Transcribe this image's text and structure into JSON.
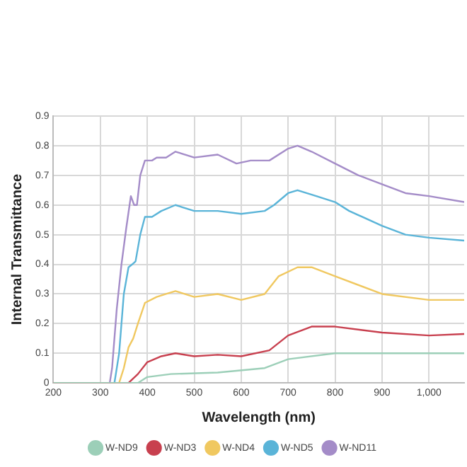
{
  "chart_data": {
    "type": "line",
    "xlabel": "Wavelength (nm)",
    "ylabel": "Internal Transmittance",
    "xlim": [
      200,
      1075
    ],
    "xticks": [
      200,
      300,
      400,
      500,
      600,
      700,
      800,
      900,
      {
        "value": 1000,
        "label": "1,000"
      }
    ],
    "ylim": [
      0,
      0.9
    ],
    "yticks": [
      0,
      0.1,
      0.2,
      0.3,
      0.4,
      0.5,
      0.6,
      0.7,
      0.8,
      0.9
    ],
    "grid": true,
    "legend": "bottom",
    "marker": "none",
    "line_style": "solid",
    "series": [
      {
        "name": "W-ND9",
        "color": "#9ccfb8",
        "x": [
          200,
          380,
          400,
          450,
          550,
          650,
          700,
          800,
          900,
          1075
        ],
        "values": [
          0,
          0,
          0.02,
          0.03,
          0.035,
          0.05,
          0.08,
          0.1,
          0.1,
          0.1
        ]
      },
      {
        "name": "W-ND3",
        "color": "#c8404f",
        "x": [
          200,
          360,
          380,
          400,
          430,
          460,
          500,
          550,
          600,
          660,
          700,
          750,
          800,
          900,
          1000,
          1075
        ],
        "values": [
          0,
          0,
          0.03,
          0.07,
          0.09,
          0.1,
          0.09,
          0.095,
          0.09,
          0.11,
          0.16,
          0.19,
          0.19,
          0.17,
          0.16,
          0.165
        ]
      },
      {
        "name": "W-ND4",
        "color": "#f0c860",
        "x": [
          200,
          340,
          350,
          360,
          370,
          380,
          395,
          420,
          440,
          460,
          500,
          550,
          600,
          650,
          680,
          720,
          750,
          800,
          900,
          1000,
          1075
        ],
        "values": [
          0,
          0,
          0.05,
          0.12,
          0.15,
          0.2,
          0.27,
          0.29,
          0.3,
          0.31,
          0.29,
          0.3,
          0.28,
          0.3,
          0.36,
          0.39,
          0.39,
          0.36,
          0.3,
          0.28,
          0.28
        ]
      },
      {
        "name": "W-ND5",
        "color": "#5ab4d8",
        "x": [
          200,
          330,
          340,
          350,
          360,
          368,
          375,
          385,
          395,
          410,
          430,
          460,
          500,
          550,
          600,
          650,
          670,
          700,
          720,
          760,
          800,
          830,
          900,
          950,
          1000,
          1075
        ],
        "values": [
          0,
          0,
          0.1,
          0.3,
          0.39,
          0.4,
          0.41,
          0.5,
          0.56,
          0.56,
          0.58,
          0.6,
          0.58,
          0.58,
          0.57,
          0.58,
          0.6,
          0.64,
          0.65,
          0.63,
          0.61,
          0.58,
          0.53,
          0.5,
          0.49,
          0.48
        ]
      },
      {
        "name": "W-ND11",
        "color": "#a48cc8",
        "x": [
          200,
          320,
          325,
          335,
          345,
          355,
          365,
          372,
          378,
          385,
          395,
          410,
          420,
          440,
          460,
          500,
          550,
          590,
          620,
          660,
          700,
          720,
          750,
          800,
          850,
          900,
          950,
          1000,
          1075
        ],
        "values": [
          0,
          0,
          0.05,
          0.25,
          0.4,
          0.52,
          0.63,
          0.6,
          0.6,
          0.7,
          0.75,
          0.75,
          0.76,
          0.76,
          0.78,
          0.76,
          0.77,
          0.74,
          0.75,
          0.75,
          0.79,
          0.8,
          0.78,
          0.74,
          0.7,
          0.67,
          0.64,
          0.63,
          0.61
        ]
      }
    ]
  }
}
